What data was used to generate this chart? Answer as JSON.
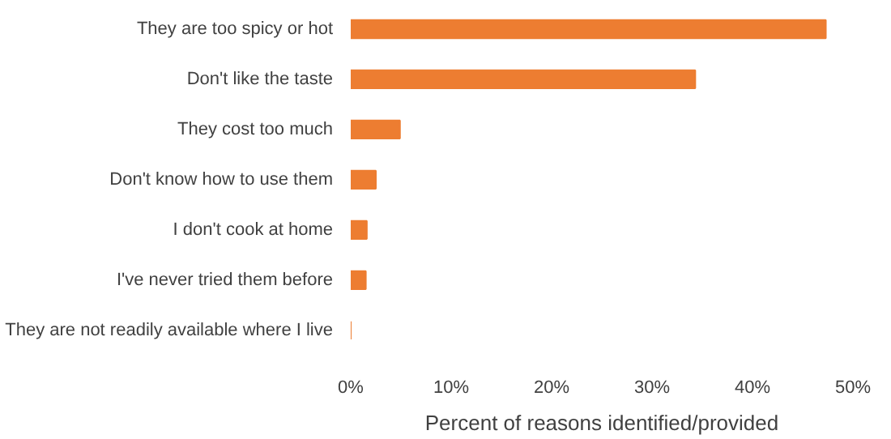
{
  "chart_data": {
    "type": "bar",
    "orientation": "horizontal",
    "xlabel": "Percent of reasons identified/provided",
    "categories": [
      "They are too spicy or hot",
      "Don't like the taste",
      "They cost too much",
      "Don't know how to use them",
      "I don't cook at home",
      "I've never tried them before",
      "They are not readily available where I live"
    ],
    "values": [
      47.3,
      34.3,
      4.9,
      2.5,
      1.6,
      1.5,
      0
    ],
    "color": "#ed7d31",
    "xlim": [
      0,
      50
    ],
    "xticks": [
      {
        "value": 0,
        "label": "0%"
      },
      {
        "value": 10,
        "label": "10%"
      },
      {
        "value": 20,
        "label": "20%"
      },
      {
        "value": 30,
        "label": "30%"
      },
      {
        "value": 40,
        "label": "40%"
      },
      {
        "value": 50,
        "label": "50%"
      }
    ],
    "grid": false
  }
}
